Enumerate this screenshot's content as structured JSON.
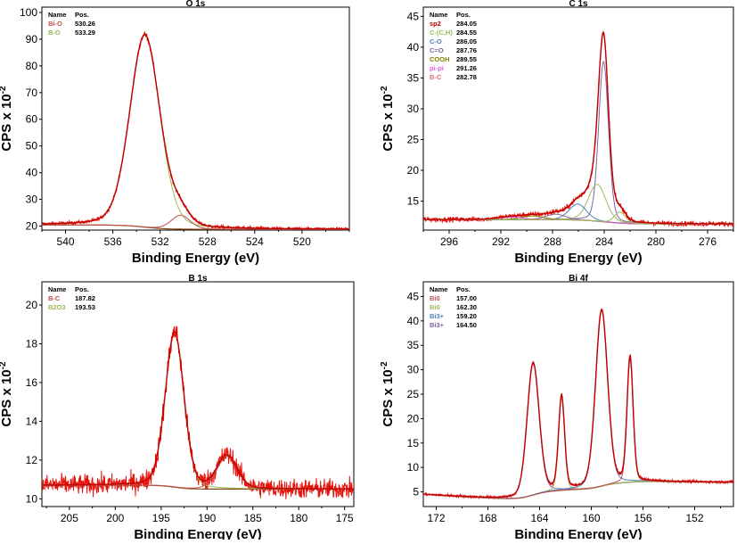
{
  "chart_data": [
    {
      "type": "line",
      "title": "O 1s",
      "xlabel": "Binding Energy (eV)",
      "ylabel": "CPS x 10",
      "ylabel_sup": "-2",
      "xlim": [
        542,
        516
      ],
      "ylim": [
        18.5,
        102
      ],
      "xticks": [
        540,
        536,
        532,
        528,
        524,
        520
      ],
      "yticks": [
        20,
        30,
        40,
        50,
        60,
        70,
        80,
        90,
        100
      ],
      "legend": {
        "position": "top-left",
        "header": [
          "Name",
          "Pos."
        ],
        "entries": [
          {
            "name": "Bi-O",
            "pos": "530.26",
            "color": "#c0504d"
          },
          {
            "name": "B-O",
            "pos": "533.29",
            "color": "#9bbb59"
          }
        ]
      },
      "background": {
        "left": 20.4,
        "right": 18.8,
        "k": 0.9,
        "sag": 2.0
      },
      "peaks": [
        {
          "center": 533.29,
          "fwhm": 3.0,
          "height": 72.0,
          "color": "#9bbb59"
        },
        {
          "center": 530.26,
          "fwhm": 1.9,
          "height": 5.2,
          "color": "#c0504d"
        }
      ],
      "noise": 0.55,
      "envelope_color": "#c00000",
      "raw_color": "#e8140c"
    },
    {
      "type": "line",
      "title": "C 1s",
      "xlabel": "Binding Energy (eV)",
      "ylabel": "CPS x 10",
      "ylabel_sup": "-2",
      "xlim": [
        298,
        274
      ],
      "ylim": [
        10.3,
        46.5
      ],
      "xticks": [
        296,
        292,
        288,
        284,
        280,
        276
      ],
      "yticks": [
        15,
        20,
        25,
        30,
        35,
        40,
        45
      ],
      "legend": {
        "position": "top-left",
        "header": [
          "Name",
          "Pos."
        ],
        "entries": [
          {
            "name": "sp2",
            "pos": "284.05",
            "color": "#c00000"
          },
          {
            "name": "C-(C,H)",
            "pos": "284.55",
            "color": "#9bbb59"
          },
          {
            "name": "C-O",
            "pos": "286.05",
            "color": "#4f81bd"
          },
          {
            "name": "C=O",
            "pos": "287.76",
            "color": "#8064a2"
          },
          {
            "name": "COOH",
            "pos": "289.55",
            "color": "#7f7f00"
          },
          {
            "name": "pi-pi",
            "pos": "291.26",
            "color": "#e060e0"
          },
          {
            "name": "B-C",
            "pos": "282.78",
            "color": "#e07070"
          }
        ]
      },
      "background": {
        "left": 12.0,
        "right": 11.3,
        "k": 0.9,
        "sag": 0.3
      },
      "peaks": [
        {
          "center": 284.05,
          "fwhm": 0.9,
          "height": 26.0,
          "color": "#8064a2"
        },
        {
          "center": 284.55,
          "fwhm": 1.6,
          "height": 6.0,
          "color": "#9bbb59"
        },
        {
          "center": 286.05,
          "fwhm": 1.6,
          "height": 2.6,
          "color": "#4f81bd"
        },
        {
          "center": 287.76,
          "fwhm": 1.8,
          "height": 0.9,
          "color": "#8064a2"
        },
        {
          "center": 289.55,
          "fwhm": 2.0,
          "height": 0.6,
          "color": "#7f7f00"
        },
        {
          "center": 291.26,
          "fwhm": 2.2,
          "height": 0.4,
          "color": "#e060e0"
        },
        {
          "center": 282.78,
          "fwhm": 1.0,
          "height": 1.8,
          "color": "#9bbb59"
        }
      ],
      "noise": 0.35,
      "envelope_color": "#c00000",
      "raw_color": "#e8140c"
    },
    {
      "type": "line",
      "title": "B 1s",
      "xlabel": "Binding Energy (eV)",
      "ylabel": "CPS x 10",
      "ylabel_sup": "-2",
      "xlim": [
        208,
        174
      ],
      "ylim": [
        9.6,
        21.2
      ],
      "xticks": [
        205,
        200,
        195,
        190,
        185,
        180,
        175
      ],
      "yticks": [
        10,
        12,
        14,
        16,
        18,
        20
      ],
      "legend": {
        "position": "top-left",
        "header": [
          "Name",
          "Pos."
        ],
        "entries": [
          {
            "name": "B-C",
            "pos": "187.82",
            "color": "#c0504d"
          },
          {
            "name": "B2O3",
            "pos": "193.53",
            "color": "#9bbb59"
          }
        ]
      },
      "background": {
        "left": 10.7,
        "right": 10.5,
        "k": 0.8,
        "sag": 0.0
      },
      "peaks": [
        {
          "center": 193.53,
          "fwhm": 2.4,
          "height": 8.0,
          "color": "#9bbb59"
        },
        {
          "center": 187.82,
          "fwhm": 2.6,
          "height": 1.7,
          "color": "#c0504d"
        }
      ],
      "noise": 0.45,
      "envelope_color": "#c00000",
      "raw_color": "#e8140c"
    },
    {
      "type": "line",
      "title": "Bi 4f",
      "xlabel": "Binding Energy (eV)",
      "ylabel": "CPS x 10",
      "ylabel_sup": "-2",
      "xlim": [
        173,
        149
      ],
      "ylim": [
        2.0,
        48.0
      ],
      "xticks": [
        172,
        168,
        164,
        160,
        156,
        152
      ],
      "yticks": [
        5,
        10,
        15,
        20,
        25,
        30,
        35,
        40,
        45
      ],
      "legend": {
        "position": "top-left",
        "header": [
          "Name",
          "Pos."
        ],
        "entries": [
          {
            "name": "Bi0",
            "pos": "157.00",
            "color": "#c0504d"
          },
          {
            "name": "Bi0",
            "pos": "162.30",
            "color": "#9bbb59"
          },
          {
            "name": "Bi3+",
            "pos": "159.20",
            "color": "#4f81bd"
          },
          {
            "name": "Bi3+",
            "pos": "164.50",
            "color": "#8064a2"
          }
        ]
      },
      "background": {
        "left": 9.0,
        "right": 2.5,
        "k": 1.0,
        "sag": 0.0
      },
      "bg_mode": "steps",
      "bg_steps": [
        [
          164.5,
          2.0
        ],
        [
          159.2,
          1.6
        ],
        [
          162.3,
          0.5
        ],
        [
          157.0,
          0.4
        ]
      ],
      "peaks": [
        {
          "center": 164.5,
          "fwhm": 1.1,
          "height": 27.0,
          "color": "#8064a2"
        },
        {
          "center": 162.3,
          "fwhm": 0.55,
          "height": 19.0,
          "color": "#9bbb59"
        },
        {
          "center": 159.2,
          "fwhm": 1.1,
          "height": 36.0,
          "color": "#4f81bd"
        },
        {
          "center": 157.0,
          "fwhm": 0.55,
          "height": 25.5,
          "color": "#c0504d"
        }
      ],
      "noise": 0.25,
      "envelope_color": "#c00000",
      "raw_color": "#e8140c"
    }
  ]
}
